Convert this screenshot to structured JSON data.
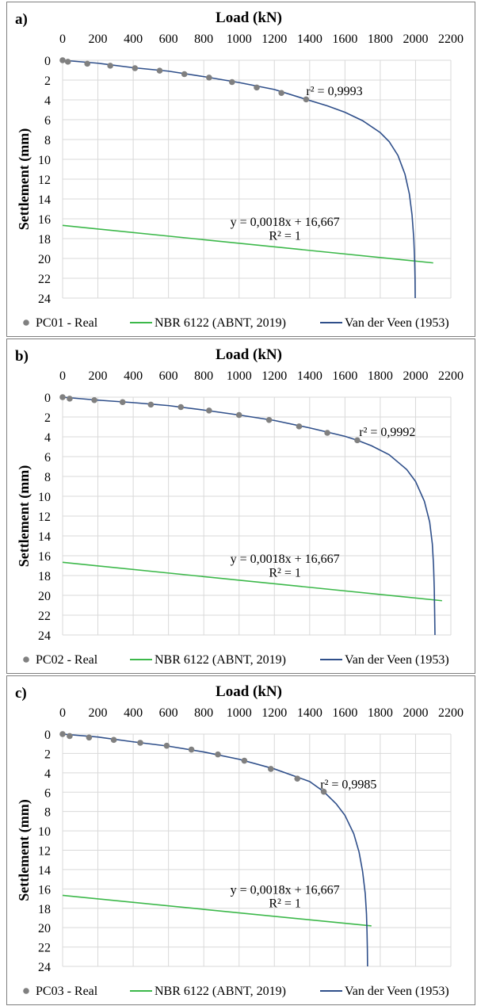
{
  "chart_data": [
    {
      "type": "scatter",
      "panel_label": "a)",
      "xlabel": "Load (kN)",
      "ylabel": "Settlement (mm)",
      "xlim": [
        0,
        2200
      ],
      "ylim": [
        0,
        24
      ],
      "y_inverted": true,
      "x_axis_position": "top",
      "grid": true,
      "x_ticks": [
        0,
        200,
        400,
        600,
        800,
        1000,
        1200,
        1400,
        1600,
        1800,
        2000,
        2200
      ],
      "y_ticks": [
        0,
        2,
        4,
        6,
        8,
        10,
        12,
        14,
        16,
        18,
        20,
        22,
        24
      ],
      "series": [
        {
          "name": "PC01 - Real",
          "kind": "scatter",
          "color": "#808080",
          "x": [
            0,
            30,
            140,
            270,
            410,
            550,
            690,
            830,
            960,
            1100,
            1240,
            1380
          ],
          "y": [
            0,
            0.15,
            0.35,
            0.55,
            0.8,
            1.05,
            1.4,
            1.75,
            2.2,
            2.75,
            3.3,
            3.95
          ]
        },
        {
          "name": "NBR 6122 (ABNT, 2019)",
          "kind": "line",
          "color": "#3cb84a",
          "x": [
            0,
            2100
          ],
          "y": [
            16.667,
            20.45
          ]
        },
        {
          "name": "Van der Veen (1953)",
          "kind": "line",
          "color": "#2f4f8a",
          "x": [
            0,
            200,
            400,
            600,
            800,
            1000,
            1200,
            1380,
            1500,
            1600,
            1700,
            1800,
            1850,
            1900,
            1940,
            1965,
            1980,
            1990,
            1995,
            1997,
            1998
          ],
          "y": [
            0,
            0.3,
            0.75,
            1.1,
            1.65,
            2.25,
            2.95,
            3.95,
            4.6,
            5.25,
            6.1,
            7.3,
            8.2,
            9.6,
            11.5,
            13.5,
            15.6,
            18,
            20.3,
            22,
            24
          ]
        }
      ],
      "annotations": [
        {
          "text": "r² = 0,9993",
          "x": 1540,
          "y": 3.5
        },
        {
          "text": "y = 0,0018x + 16,667",
          "x": 1260,
          "y": 16.7
        },
        {
          "text": "R² = 1",
          "x": 1260,
          "y": 18.1
        }
      ],
      "legend": [
        "PC01 - Real",
        "NBR 6122 (ABNT, 2019)",
        "Van der Veen (1953)"
      ],
      "legend_position": "bottom"
    },
    {
      "type": "scatter",
      "panel_label": "b)",
      "xlabel": "Load (kN)",
      "ylabel": "Settlement (mm)",
      "xlim": [
        0,
        2200
      ],
      "ylim": [
        0,
        24
      ],
      "y_inverted": true,
      "x_axis_position": "top",
      "grid": true,
      "x_ticks": [
        0,
        200,
        400,
        600,
        800,
        1000,
        1200,
        1400,
        1600,
        1800,
        2000,
        2200
      ],
      "y_ticks": [
        0,
        2,
        4,
        6,
        8,
        10,
        12,
        14,
        16,
        18,
        20,
        22,
        24
      ],
      "series": [
        {
          "name": "PC02 - Real",
          "kind": "scatter",
          "color": "#808080",
          "x": [
            0,
            40,
            180,
            340,
            500,
            670,
            830,
            1000,
            1170,
            1340,
            1500,
            1670
          ],
          "y": [
            0,
            0.15,
            0.3,
            0.5,
            0.75,
            1.0,
            1.35,
            1.8,
            2.3,
            2.95,
            3.6,
            4.35
          ]
        },
        {
          "name": "NBR 6122 (ABNT, 2019)",
          "kind": "line",
          "color": "#3cb84a",
          "x": [
            0,
            2150
          ],
          "y": [
            16.667,
            20.54
          ]
        },
        {
          "name": "Van der Veen (1953)",
          "kind": "line",
          "color": "#2f4f8a",
          "x": [
            0,
            200,
            400,
            600,
            800,
            1000,
            1200,
            1400,
            1600,
            1670,
            1750,
            1850,
            1950,
            2000,
            2050,
            2080,
            2095,
            2102,
            2106,
            2108,
            2110
          ],
          "y": [
            0,
            0.3,
            0.55,
            0.85,
            1.3,
            1.8,
            2.35,
            3.1,
            3.95,
            4.35,
            4.9,
            5.8,
            7.3,
            8.5,
            10.5,
            12.6,
            14.8,
            17,
            19.3,
            21.5,
            24
          ]
        }
      ],
      "annotations": [
        {
          "text": "r² = 0,9992",
          "x": 1840,
          "y": 3.9
        },
        {
          "text": "y = 0,0018x + 16,667",
          "x": 1260,
          "y": 16.7
        },
        {
          "text": "R² = 1",
          "x": 1260,
          "y": 18.1
        }
      ],
      "legend": [
        "PC02 - Real",
        "NBR 6122 (ABNT, 2019)",
        "Van der Veen (1953)"
      ],
      "legend_position": "bottom"
    },
    {
      "type": "scatter",
      "panel_label": "c)",
      "xlabel": "Load (kN)",
      "ylabel": "Settlement (mm)",
      "xlim": [
        0,
        2200
      ],
      "ylim": [
        0,
        24
      ],
      "y_inverted": true,
      "x_axis_position": "top",
      "grid": true,
      "x_ticks": [
        0,
        200,
        400,
        600,
        800,
        1000,
        1200,
        1400,
        1600,
        1800,
        2000,
        2200
      ],
      "y_ticks": [
        0,
        2,
        4,
        6,
        8,
        10,
        12,
        14,
        16,
        18,
        20,
        22,
        24
      ],
      "series": [
        {
          "name": "PC03 - Real",
          "kind": "scatter",
          "color": "#808080",
          "x": [
            0,
            40,
            150,
            290,
            440,
            590,
            730,
            880,
            1030,
            1180,
            1330,
            1480
          ],
          "y": [
            0,
            0.2,
            0.35,
            0.6,
            0.9,
            1.2,
            1.6,
            2.1,
            2.75,
            3.6,
            4.6,
            5.95
          ]
        },
        {
          "name": "NBR 6122 (ABNT, 2019)",
          "kind": "line",
          "color": "#3cb84a",
          "x": [
            0,
            1750
          ],
          "y": [
            16.667,
            19.82
          ]
        },
        {
          "name": "Van der Veen (1953)",
          "kind": "line",
          "color": "#2f4f8a",
          "x": [
            0,
            200,
            400,
            600,
            800,
            1000,
            1200,
            1400,
            1480,
            1550,
            1600,
            1650,
            1680,
            1700,
            1715,
            1722,
            1725,
            1727,
            1728
          ],
          "y": [
            0,
            0.3,
            0.8,
            1.25,
            1.85,
            2.6,
            3.6,
            4.9,
            5.95,
            7.2,
            8.4,
            10.3,
            12.2,
            14.2,
            16.5,
            18.6,
            20.5,
            22.3,
            24
          ]
        }
      ],
      "annotations": [
        {
          "text": "r² = 0,9985",
          "x": 1620,
          "y": 5.6
        },
        {
          "text": "y = 0,0018x + 16,667",
          "x": 1260,
          "y": 16.5
        },
        {
          "text": "R² = 1",
          "x": 1260,
          "y": 17.9
        }
      ],
      "legend": [
        "PC03 - Real",
        "NBR 6122 (ABNT, 2019)",
        "Van der Veen (1953)"
      ],
      "legend_position": "bottom"
    }
  ]
}
